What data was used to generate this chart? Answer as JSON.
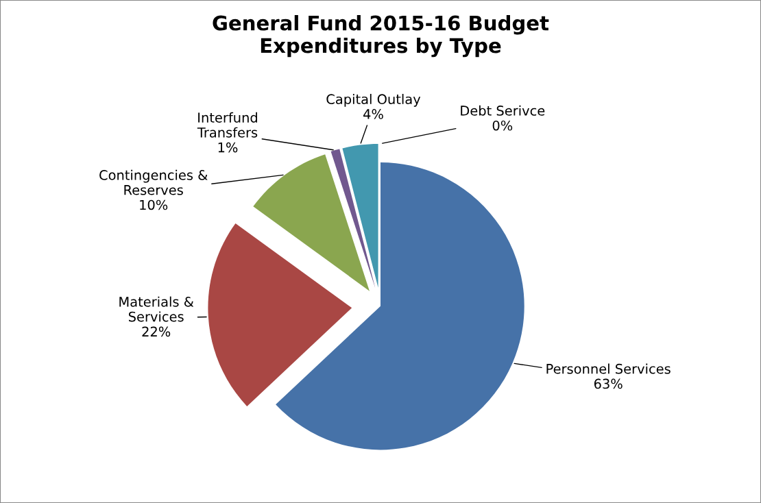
{
  "chart_data": {
    "type": "pie",
    "title": "General Fund 2015-16 Budget\nExpenditures by Type",
    "categories": [
      "Personnel Services",
      "Materials & Services",
      "Contingencies & Reserves",
      "Interfund Transfers",
      "Capital Outlay",
      "Debt Serivce"
    ],
    "values": [
      63,
      22,
      10,
      1,
      4,
      0
    ],
    "value_labels": [
      "63%",
      "22%",
      "10%",
      "1%",
      "4%",
      "0%"
    ],
    "colors": [
      "#4672a8",
      "#a94744",
      "#8aa64f",
      "#71588f",
      "#4298af",
      "#db843d"
    ],
    "legend": false
  }
}
